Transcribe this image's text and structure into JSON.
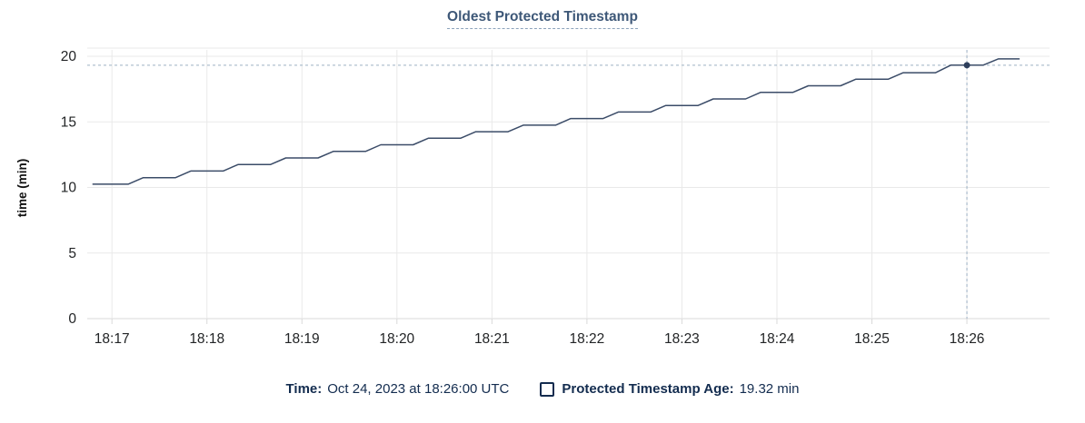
{
  "chart": {
    "title": "Oldest Protected Timestamp"
  },
  "legend": {
    "time_label": "Time:",
    "time_value": "Oct 24, 2023 at 18:26:00 UTC",
    "series_label": "Protected Timestamp Age:",
    "series_value": "19.32 min"
  },
  "colors": {
    "title_text": "#3e5878",
    "title_underline": "#8ba2bb",
    "legend_text": "#132c4f",
    "line": "#3b4c68",
    "point": "#2e3f5c",
    "crosshair": "#9cb1c4",
    "grid": "#e9e9e9",
    "axis_line": "#d9d9d9",
    "top_border": "#f4f4f4",
    "tick_text": "#222426",
    "axis_title_text": "#111111"
  },
  "chart_data": {
    "type": "line",
    "title": "Oldest Protected Timestamp",
    "xlabel": "",
    "ylabel": "time (min)",
    "ylim": [
      0,
      20
    ],
    "yticks": [
      0,
      5,
      10,
      15,
      20
    ],
    "x_ticks_minutes": [
      17,
      18,
      19,
      20,
      21,
      22,
      23,
      24,
      25,
      26
    ],
    "x_tick_labels": [
      "18:17",
      "18:18",
      "18:19",
      "18:20",
      "18:21",
      "18:22",
      "18:23",
      "18:24",
      "18:25",
      "18:26"
    ],
    "x_range_minutes": [
      16.74,
      26.87
    ],
    "x_units_note": "minutes after 18:00 UTC",
    "grid": true,
    "legend_position": "bottom",
    "series": [
      {
        "name": "Protected Timestamp Age",
        "unit": "min",
        "points_min_value": [
          [
            16.8,
            10.25
          ],
          [
            17.17,
            10.25
          ],
          [
            17.33,
            10.75
          ],
          [
            17.67,
            10.75
          ],
          [
            17.83,
            11.25
          ],
          [
            18.17,
            11.25
          ],
          [
            18.33,
            11.75
          ],
          [
            18.67,
            11.75
          ],
          [
            18.83,
            12.25
          ],
          [
            19.17,
            12.25
          ],
          [
            19.33,
            12.75
          ],
          [
            19.67,
            12.75
          ],
          [
            19.83,
            13.25
          ],
          [
            20.17,
            13.25
          ],
          [
            20.33,
            13.75
          ],
          [
            20.67,
            13.75
          ],
          [
            20.83,
            14.25
          ],
          [
            21.17,
            14.25
          ],
          [
            21.33,
            14.75
          ],
          [
            21.67,
            14.75
          ],
          [
            21.83,
            15.25
          ],
          [
            22.17,
            15.25
          ],
          [
            22.33,
            15.75
          ],
          [
            22.67,
            15.75
          ],
          [
            22.83,
            16.25
          ],
          [
            23.17,
            16.25
          ],
          [
            23.33,
            16.75
          ],
          [
            23.67,
            16.75
          ],
          [
            23.83,
            17.25
          ],
          [
            24.17,
            17.25
          ],
          [
            24.33,
            17.75
          ],
          [
            24.67,
            17.75
          ],
          [
            24.83,
            18.25
          ],
          [
            25.17,
            18.25
          ],
          [
            25.33,
            18.75
          ],
          [
            25.67,
            18.75
          ],
          [
            25.83,
            19.32
          ],
          [
            26.17,
            19.32
          ],
          [
            26.33,
            19.8
          ],
          [
            26.55,
            19.8
          ]
        ]
      }
    ],
    "hover_point": {
      "x_minutes": 26.0,
      "time": "18:26:00",
      "date_label": "Oct 24, 2023 at 18:26:00 UTC",
      "value": 19.32,
      "value_label": "19.32 min"
    }
  }
}
